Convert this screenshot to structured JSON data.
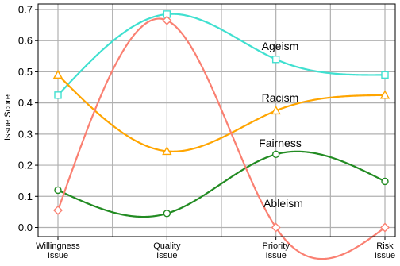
{
  "chart_data": {
    "type": "line",
    "title": "",
    "xlabel": "",
    "ylabel": "Issue Score",
    "ylim": [
      -0.02,
      0.71
    ],
    "yticks": [
      "0.0",
      "0.1",
      "0.2",
      "0.3",
      "0.4",
      "0.5",
      "0.6",
      "0.7"
    ],
    "categories": [
      [
        "Willingness",
        "Issue"
      ],
      [
        "Quality",
        "Issue"
      ],
      [
        "Priority",
        "Issue"
      ],
      [
        "Risk",
        "Issue"
      ]
    ],
    "grid": true,
    "smooth": true,
    "series": [
      {
        "name": "Ageism",
        "color": "#40E0D0",
        "marker": "square",
        "values": [
          0.425,
          0.685,
          0.54,
          0.49
        ]
      },
      {
        "name": "Racism",
        "color": "#FFA500",
        "marker": "triangle",
        "values": [
          0.49,
          0.245,
          0.375,
          0.425
        ]
      },
      {
        "name": "Fairness",
        "color": "#228B22",
        "marker": "circle",
        "values": [
          0.12,
          0.045,
          0.235,
          0.148
        ]
      },
      {
        "name": "Ableism",
        "color": "#FA8072",
        "marker": "diamond",
        "values": [
          0.055,
          0.665,
          0.0,
          0.0
        ]
      }
    ]
  }
}
